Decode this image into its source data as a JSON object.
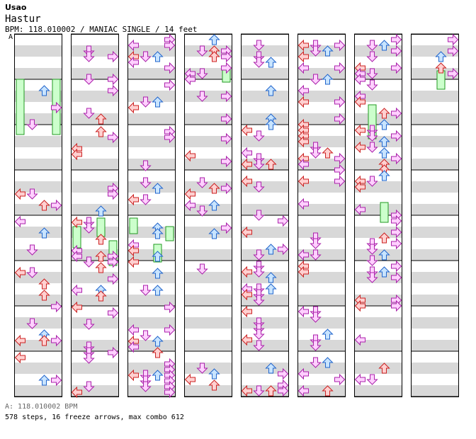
{
  "header": {
    "artist": "Usao",
    "title": "Hastur",
    "info": "BPM: 118.010002 / MANIAC SINGLE / 14 feet",
    "marker": "A"
  },
  "footer": {
    "bpm_line": "A: 118.010002 BPM",
    "stats": "578 steps, 16 freeze arrows, max combo 612"
  },
  "colors": {
    "left": "#ffd0d0",
    "left_stroke": "#cc2222",
    "down": "#ffd0ff",
    "down_stroke": "#aa22aa",
    "up": "#c8e4ff",
    "up_stroke": "#2266cc",
    "right": "#ffd0ff",
    "freeze": "#ccffcc",
    "freeze_stroke": "#229922",
    "stripe": "#d8d8d8"
  },
  "columns": [
    {
      "name": "col-1"
    },
    {
      "name": "col-2"
    },
    {
      "name": "col-3"
    },
    {
      "name": "col-4"
    },
    {
      "name": "col-5"
    },
    {
      "name": "col-6"
    },
    {
      "name": "col-7"
    },
    {
      "name": "col-8"
    }
  ]
}
